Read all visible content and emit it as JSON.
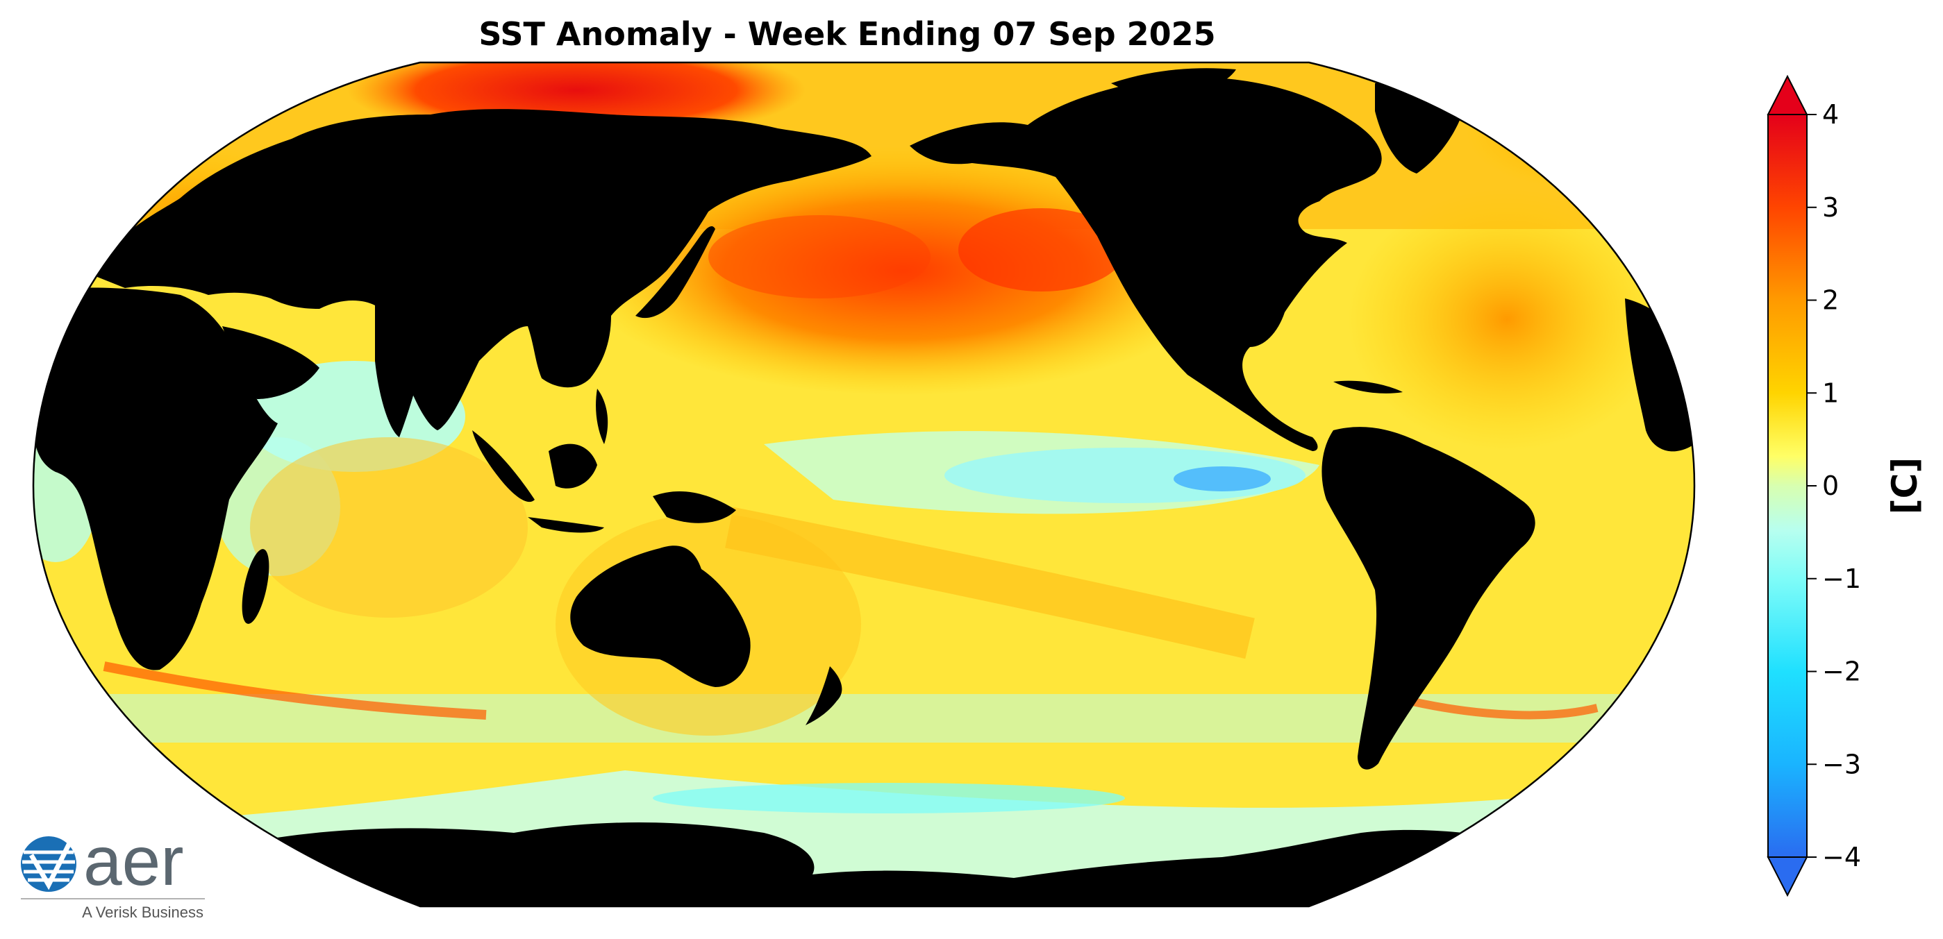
{
  "title": "SST Anomaly - Week Ending 07 Sep 2025",
  "colorbar": {
    "label": "[C]",
    "ticks": [
      "4",
      "3",
      "2",
      "1",
      "0",
      "−1",
      "−2",
      "−3",
      "−4"
    ],
    "range": [
      -4,
      4
    ],
    "extend": "both",
    "stops": [
      {
        "value": 4,
        "color": "#e4001a"
      },
      {
        "value": 3,
        "color": "#ff4500"
      },
      {
        "value": 2,
        "color": "#ff9a00"
      },
      {
        "value": 1,
        "color": "#ffd400"
      },
      {
        "value": 0.3,
        "color": "#ffff66"
      },
      {
        "value": 0,
        "color": "#d8ffb0"
      },
      {
        "value": -0.5,
        "color": "#b7ffef"
      },
      {
        "value": -1,
        "color": "#7ffcf8"
      },
      {
        "value": -2,
        "color": "#1fe0ff"
      },
      {
        "value": -3,
        "color": "#1ab4ff"
      },
      {
        "value": -4,
        "color": "#2a6cf0"
      }
    ]
  },
  "colors": {
    "land": "#000000",
    "warm_anomaly": "#ff7a00",
    "neutral_anomaly": "#ffee44",
    "cool_anomaly": "#8ff6ff",
    "strong_warm": "#e80e0e"
  },
  "logo": {
    "wordmark": "aer",
    "tagline": "A Verisk Business"
  }
}
